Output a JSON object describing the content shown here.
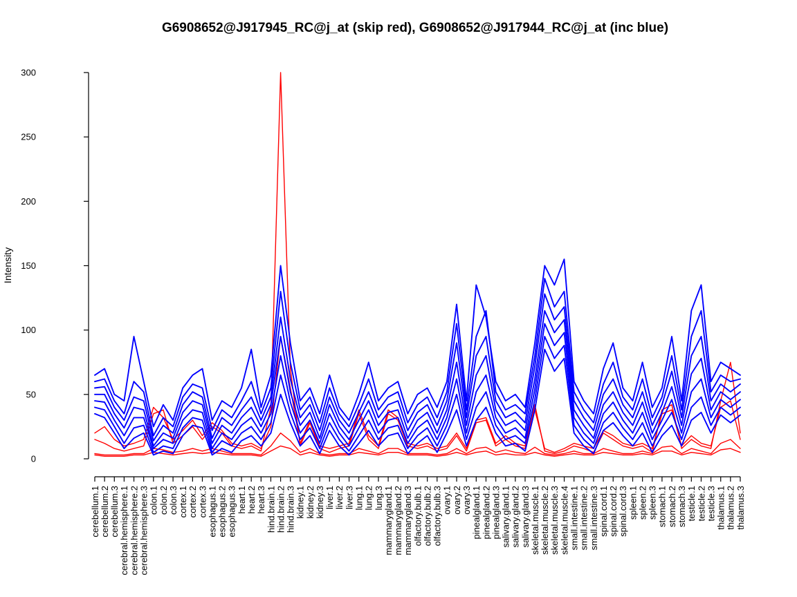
{
  "background_color": "#FFFFFF",
  "chart_data": {
    "type": "line",
    "title": "G6908652@J917945_RC@j_at (skip red), G6908652@J917944_RC@j_at (inc blue)",
    "ylabel": "Intensity",
    "xlabel": "",
    "ylim": [
      0,
      300
    ],
    "y_ticks": [
      0,
      50,
      100,
      150,
      200,
      250,
      300
    ],
    "grid": false,
    "legend_position": "none",
    "series_colors": {
      "skip": "#FF0000",
      "inc": "#0000FF"
    },
    "categories": [
      "cerebellum.1",
      "cerebellum.2",
      "cerebellum.3",
      "cerebral.hemisphere.1",
      "cerebral.hemisphere.2",
      "cerebral.hemisphere.3",
      "colon.1",
      "colon.2",
      "colon.3",
      "cortex.1",
      "cortex.2",
      "cortex.3",
      "esophagus.1",
      "esophagus.2",
      "esophagus.3",
      "heart.1",
      "heart.2",
      "heart.3",
      "hind.brain.1",
      "hind.brain.2",
      "hind.brain.3",
      "kidney.1",
      "kidney.2",
      "kidney.3",
      "liver.1",
      "liver.2",
      "liver.3",
      "lung.1",
      "lung.2",
      "lung.3",
      "mammarygland.1",
      "mammarygland.2",
      "mammarygland.3",
      "olfactory.bulb.1",
      "olfactory.bulb.2",
      "olfactory.bulb.3",
      "ovary.1",
      "ovary.2",
      "ovary.3",
      "pinealgland.1",
      "pinealgland.2",
      "pinealgland.3",
      "salivary.gland.1",
      "salivary.gland.2",
      "salivary.gland.3",
      "skeletal.muscle.1",
      "skeletal.muscle.2",
      "skeletal.muscle.3",
      "skeletal.muscle.4",
      "small.intestine.1",
      "small.intestine.2",
      "small.intestine.3",
      "spinal.cord.1",
      "spinal.cord.2",
      "spinal.cord.3",
      "spleen.1",
      "spleen.2",
      "spleen.3",
      "stomach.1",
      "stomach.2",
      "stomach.3",
      "testicle.1",
      "testicle.2",
      "testicle.3",
      "thalamus.1",
      "thalamus.2",
      "thalamus.3"
    ],
    "series": [
      {
        "name": "red-1",
        "group": "skip (red)",
        "color": "#FF0000",
        "values": [
          15,
          12,
          8,
          6,
          8,
          10,
          35,
          38,
          12,
          18,
          25,
          15,
          25,
          20,
          10,
          8,
          10,
          6,
          40,
          300,
          70,
          10,
          28,
          8,
          5,
          8,
          10,
          35,
          15,
          8,
          35,
          30,
          10,
          8,
          10,
          6,
          8,
          18,
          6,
          28,
          30,
          10,
          15,
          10,
          8,
          42,
          6,
          4,
          6,
          10,
          8,
          5,
          20,
          15,
          10,
          8,
          10,
          5,
          38,
          42,
          8,
          15,
          10,
          8,
          45,
          75,
          20
        ]
      },
      {
        "name": "red-2",
        "group": "skip (red)",
        "color": "#FF0000",
        "values": [
          20,
          25,
          15,
          10,
          12,
          15,
          40,
          32,
          15,
          22,
          30,
          18,
          28,
          22,
          12,
          10,
          12,
          8,
          25,
          95,
          55,
          12,
          30,
          10,
          8,
          10,
          12,
          38,
          18,
          10,
          38,
          32,
          12,
          10,
          12,
          8,
          10,
          20,
          8,
          30,
          32,
          12,
          18,
          12,
          10,
          38,
          8,
          5,
          8,
          12,
          10,
          8,
          22,
          18,
          12,
          10,
          12,
          8,
          35,
          38,
          10,
          18,
          12,
          10,
          40,
          45,
          15
        ]
      },
      {
        "name": "red-3",
        "group": "skip (red)",
        "color": "#FF0000",
        "values": [
          4,
          3,
          3,
          3,
          4,
          4,
          8,
          7,
          5,
          6,
          8,
          6,
          8,
          6,
          4,
          4,
          4,
          3,
          10,
          20,
          14,
          5,
          8,
          4,
          3,
          4,
          4,
          8,
          6,
          4,
          8,
          8,
          4,
          4,
          4,
          3,
          4,
          8,
          4,
          8,
          9,
          5,
          7,
          5,
          4,
          9,
          4,
          3,
          4,
          6,
          4,
          4,
          8,
          6,
          4,
          4,
          6,
          4,
          9,
          10,
          4,
          8,
          6,
          4,
          12,
          15,
          8
        ]
      },
      {
        "name": "red-4",
        "group": "skip (red)",
        "color": "#FF0000",
        "values": [
          3,
          2,
          2,
          2,
          3,
          3,
          5,
          4,
          3,
          4,
          5,
          4,
          5,
          4,
          3,
          3,
          3,
          2,
          6,
          10,
          8,
          3,
          5,
          3,
          2,
          3,
          3,
          5,
          4,
          3,
          5,
          5,
          3,
          3,
          3,
          2,
          3,
          5,
          3,
          5,
          6,
          3,
          4,
          3,
          3,
          5,
          3,
          2,
          3,
          4,
          3,
          3,
          5,
          4,
          3,
          3,
          4,
          3,
          6,
          6,
          3,
          5,
          4,
          3,
          7,
          8,
          5
        ]
      },
      {
        "name": "blue-1",
        "group": "inc (blue)",
        "color": "#0000FF",
        "values": [
          65,
          70,
          50,
          45,
          95,
          60,
          25,
          42,
          30,
          55,
          65,
          70,
          30,
          45,
          40,
          55,
          85,
          40,
          65,
          150,
          90,
          45,
          55,
          35,
          65,
          40,
          30,
          50,
          75,
          45,
          55,
          60,
          35,
          50,
          55,
          40,
          60,
          120,
          45,
          135,
          110,
          60,
          45,
          50,
          40,
          90,
          150,
          135,
          155,
          60,
          45,
          35,
          70,
          90,
          55,
          45,
          75,
          40,
          55,
          95,
          45,
          115,
          135,
          60,
          75,
          70,
          65
        ]
      },
      {
        "name": "blue-2",
        "group": "inc (blue)",
        "color": "#0000FF",
        "values": [
          60,
          62,
          45,
          35,
          60,
          52,
          18,
          32,
          25,
          48,
          58,
          55,
          22,
          38,
          32,
          45,
          60,
          35,
          55,
          130,
          75,
          38,
          48,
          28,
          55,
          35,
          25,
          42,
          62,
          38,
          48,
          52,
          28,
          42,
          48,
          32,
          52,
          105,
          38,
          95,
          115,
          52,
          38,
          42,
          35,
          80,
          140,
          118,
          130,
          52,
          38,
          28,
          58,
          75,
          48,
          38,
          62,
          32,
          48,
          80,
          38,
          95,
          115,
          52,
          65,
          60,
          62
        ]
      },
      {
        "name": "blue-3",
        "group": "inc (blue)",
        "color": "#0000FF",
        "values": [
          55,
          56,
          40,
          30,
          48,
          45,
          14,
          26,
          20,
          42,
          52,
          48,
          16,
          32,
          26,
          38,
          48,
          30,
          48,
          110,
          62,
          32,
          42,
          22,
          48,
          30,
          20,
          36,
          52,
          32,
          42,
          45,
          22,
          36,
          42,
          26,
          45,
          90,
          32,
          80,
          95,
          45,
          32,
          36,
          28,
          72,
          128,
          108,
          118,
          45,
          32,
          22,
          50,
          62,
          42,
          32,
          52,
          26,
          42,
          68,
          32,
          80,
          95,
          45,
          58,
          52,
          58
        ]
      },
      {
        "name": "blue-4",
        "group": "inc (blue)",
        "color": "#0000FF",
        "values": [
          50,
          50,
          35,
          24,
          40,
          38,
          10,
          20,
          16,
          36,
          45,
          42,
          12,
          26,
          20,
          32,
          40,
          25,
          42,
          95,
          52,
          26,
          36,
          16,
          42,
          25,
          15,
          30,
          45,
          26,
          36,
          38,
          16,
          30,
          36,
          20,
          38,
          75,
          26,
          65,
          80,
          38,
          26,
          30,
          22,
          62,
          115,
          98,
          108,
          38,
          26,
          16,
          42,
          52,
          36,
          26,
          44,
          20,
          36,
          56,
          26,
          66,
          78,
          38,
          52,
          46,
          52
        ]
      },
      {
        "name": "blue-5",
        "group": "inc (blue)",
        "color": "#0000FF",
        "values": [
          45,
          44,
          30,
          18,
          32,
          32,
          8,
          15,
          12,
          30,
          38,
          36,
          8,
          20,
          15,
          26,
          32,
          20,
          35,
          80,
          44,
          20,
          30,
          12,
          35,
          20,
          10,
          24,
          38,
          20,
          30,
          32,
          12,
          24,
          30,
          15,
          32,
          62,
          20,
          52,
          65,
          32,
          20,
          24,
          16,
          54,
          105,
          88,
          98,
          32,
          20,
          12,
          35,
          44,
          30,
          20,
          36,
          15,
          30,
          46,
          20,
          52,
          62,
          32,
          46,
          40,
          46
        ]
      },
      {
        "name": "blue-6",
        "group": "inc (blue)",
        "color": "#0000FF",
        "values": [
          40,
          38,
          25,
          12,
          24,
          26,
          5,
          10,
          8,
          24,
          32,
          30,
          5,
          14,
          10,
          20,
          25,
          15,
          28,
          65,
          36,
          15,
          24,
          8,
          28,
          15,
          6,
          18,
          30,
          15,
          24,
          26,
          8,
          18,
          24,
          10,
          26,
          50,
          15,
          40,
          52,
          26,
          15,
          18,
          12,
          46,
          95,
          78,
          88,
          26,
          15,
          8,
          28,
          36,
          24,
          15,
          28,
          10,
          24,
          36,
          15,
          40,
          48,
          26,
          40,
          34,
          40
        ]
      },
      {
        "name": "blue-7",
        "group": "inc (blue)",
        "color": "#0000FF",
        "values": [
          35,
          32,
          20,
          8,
          16,
          20,
          3,
          6,
          4,
          18,
          26,
          24,
          3,
          8,
          5,
          14,
          18,
          10,
          20,
          50,
          28,
          10,
          18,
          4,
          22,
          10,
          3,
          12,
          22,
          10,
          18,
          20,
          4,
          12,
          18,
          5,
          20,
          38,
          10,
          30,
          40,
          20,
          10,
          12,
          6,
          38,
          85,
          68,
          78,
          20,
          10,
          4,
          22,
          28,
          18,
          10,
          20,
          5,
          18,
          26,
          10,
          30,
          36,
          20,
          34,
          28,
          34
        ]
      }
    ]
  }
}
